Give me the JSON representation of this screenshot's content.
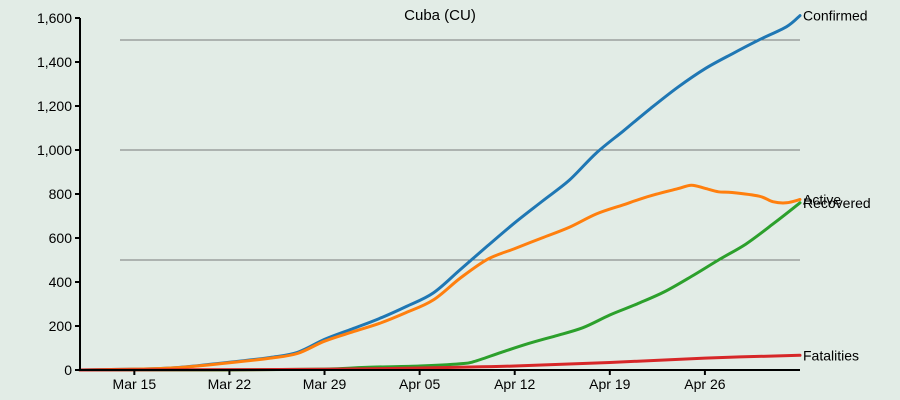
{
  "chart_data": {
    "type": "line",
    "title": "Cuba (CU)",
    "xlabel": "",
    "ylabel": "",
    "x_range": [
      "2020-03-11",
      "2020-05-03"
    ],
    "ylim": [
      0,
      1600
    ],
    "x_ticks": [
      {
        "date": "2020-03-15",
        "label": "Mar 15"
      },
      {
        "date": "2020-03-22",
        "label": "Mar 22"
      },
      {
        "date": "2020-03-29",
        "label": "Mar 29"
      },
      {
        "date": "2020-04-05",
        "label": "Apr 05"
      },
      {
        "date": "2020-04-12",
        "label": "Apr 12"
      },
      {
        "date": "2020-04-19",
        "label": "Apr 19"
      },
      {
        "date": "2020-04-26",
        "label": "Apr 26"
      }
    ],
    "y_ticks": [
      {
        "value": 0,
        "label": "0"
      },
      {
        "value": 200,
        "label": "200"
      },
      {
        "value": 400,
        "label": "400"
      },
      {
        "value": 600,
        "label": "600"
      },
      {
        "value": 800,
        "label": "800"
      },
      {
        "value": 1000,
        "label": "1,000"
      },
      {
        "value": 1200,
        "label": "1,200"
      },
      {
        "value": 1400,
        "label": "1,400"
      },
      {
        "value": 1600,
        "label": "1,600"
      }
    ],
    "grid_values": [
      500,
      1000,
      1500
    ],
    "legend": "end-of-line labels",
    "series": [
      {
        "name": "Confirmed",
        "color": "#1f77b4",
        "points": [
          [
            "2020-03-11",
            0
          ],
          [
            "2020-03-15",
            4
          ],
          [
            "2020-03-18",
            10
          ],
          [
            "2020-03-22",
            35
          ],
          [
            "2020-03-25",
            57
          ],
          [
            "2020-03-27",
            80
          ],
          [
            "2020-03-29",
            139
          ],
          [
            "2020-03-31",
            186
          ],
          [
            "2020-04-02",
            233
          ],
          [
            "2020-04-04",
            288
          ],
          [
            "2020-04-06",
            350
          ],
          [
            "2020-04-08",
            457
          ],
          [
            "2020-04-10",
            564
          ],
          [
            "2020-04-12",
            669
          ],
          [
            "2020-04-14",
            766
          ],
          [
            "2020-04-16",
            862
          ],
          [
            "2020-04-18",
            986
          ],
          [
            "2020-04-20",
            1087
          ],
          [
            "2020-04-22",
            1189
          ],
          [
            "2020-04-24",
            1285
          ],
          [
            "2020-04-26",
            1369
          ],
          [
            "2020-04-28",
            1437
          ],
          [
            "2020-04-30",
            1501
          ],
          [
            "2020-05-02",
            1560
          ],
          [
            "2020-05-03",
            1611
          ]
        ]
      },
      {
        "name": "Active",
        "color": "#ff7f0e",
        "points": [
          [
            "2020-03-11",
            0
          ],
          [
            "2020-03-15",
            4
          ],
          [
            "2020-03-18",
            10
          ],
          [
            "2020-03-22",
            33
          ],
          [
            "2020-03-25",
            54
          ],
          [
            "2020-03-27",
            75
          ],
          [
            "2020-03-29",
            131
          ],
          [
            "2020-03-31",
            172
          ],
          [
            "2020-04-02",
            211
          ],
          [
            "2020-04-04",
            261
          ],
          [
            "2020-04-06",
            318
          ],
          [
            "2020-04-08",
            418
          ],
          [
            "2020-04-10",
            503
          ],
          [
            "2020-04-12",
            552
          ],
          [
            "2020-04-14",
            600
          ],
          [
            "2020-04-16",
            648
          ],
          [
            "2020-04-18",
            709
          ],
          [
            "2020-04-20",
            751
          ],
          [
            "2020-04-22",
            792
          ],
          [
            "2020-04-24",
            824
          ],
          [
            "2020-04-25",
            840
          ],
          [
            "2020-04-26",
            826
          ],
          [
            "2020-04-27",
            810
          ],
          [
            "2020-04-28",
            807
          ],
          [
            "2020-04-30",
            790
          ],
          [
            "2020-05-01",
            765
          ],
          [
            "2020-05-02",
            760
          ],
          [
            "2020-05-03",
            775
          ]
        ]
      },
      {
        "name": "Recovered",
        "color": "#2ca02c",
        "points": [
          [
            "2020-03-11",
            0
          ],
          [
            "2020-03-22",
            0
          ],
          [
            "2020-03-29",
            4
          ],
          [
            "2020-04-01",
            12
          ],
          [
            "2020-04-05",
            18
          ],
          [
            "2020-04-08",
            28
          ],
          [
            "2020-04-09",
            38
          ],
          [
            "2020-04-11",
            80
          ],
          [
            "2020-04-13",
            120
          ],
          [
            "2020-04-15",
            155
          ],
          [
            "2020-04-17",
            192
          ],
          [
            "2020-04-19",
            250
          ],
          [
            "2020-04-21",
            300
          ],
          [
            "2020-04-23",
            355
          ],
          [
            "2020-04-25",
            425
          ],
          [
            "2020-04-27",
            500
          ],
          [
            "2020-04-29",
            572
          ],
          [
            "2020-05-01",
            663
          ],
          [
            "2020-05-03",
            760
          ]
        ]
      },
      {
        "name": "Fatalities",
        "color": "#d62728",
        "points": [
          [
            "2020-03-11",
            0
          ],
          [
            "2020-03-18",
            1
          ],
          [
            "2020-03-29",
            3
          ],
          [
            "2020-04-05",
            9
          ],
          [
            "2020-04-12",
            18
          ],
          [
            "2020-04-19",
            34
          ],
          [
            "2020-04-26",
            54
          ],
          [
            "2020-05-03",
            67
          ]
        ]
      }
    ]
  }
}
